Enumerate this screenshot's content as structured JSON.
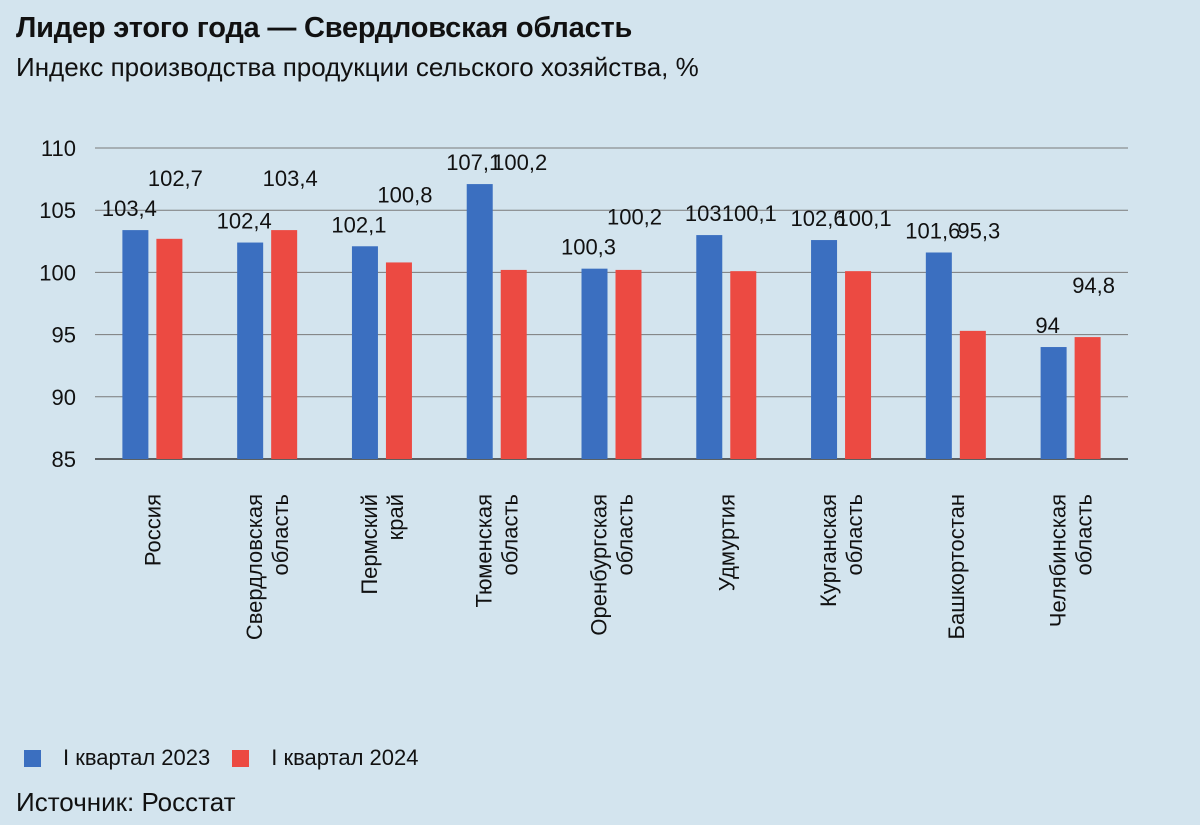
{
  "header": {
    "title": "Лидер этого года — Свердловская область",
    "subtitle": "Индекс производства продукции сельского хозяйства, %"
  },
  "footer": {
    "source": "Источник: Росстат"
  },
  "chart_data": {
    "type": "bar",
    "title": "Лидер этого года — Свердловская область",
    "subtitle": "Индекс производства продукции сельского хозяйства, %",
    "categories": [
      [
        "Россия"
      ],
      [
        "Свердловская",
        "область"
      ],
      [
        "Пермский",
        "край"
      ],
      [
        "Тюменская",
        "область"
      ],
      [
        "Оренбургская",
        "область"
      ],
      [
        "Удмуртия"
      ],
      [
        "Курганская",
        "область"
      ],
      [
        "Башкортостан"
      ],
      [
        "Челябинская",
        "область"
      ]
    ],
    "series": [
      {
        "name": "I квартал 2023",
        "color": "#3b6fc0",
        "values": [
          103.4,
          102.4,
          102.1,
          107.1,
          100.3,
          103,
          102.6,
          101.6,
          94
        ],
        "labels": [
          "103,4",
          "102,4",
          "102,1",
          "107,1",
          "100,3",
          "103",
          "102,6",
          "101,6",
          "94"
        ]
      },
      {
        "name": "I квартал 2024",
        "color": "#ec4a42",
        "values": [
          102.7,
          103.4,
          100.8,
          100.2,
          100.2,
          100.1,
          100.1,
          95.3,
          94.8
        ],
        "labels": [
          "102,7",
          "103,4",
          "100,8",
          "100,2",
          "100,2",
          "100,1",
          "100,1",
          "95,3",
          "94,8"
        ]
      }
    ],
    "ylim": [
      85,
      110
    ],
    "yticks": [
      85,
      90,
      95,
      100,
      105,
      110
    ],
    "grid": true,
    "legend": "bottom-left"
  }
}
